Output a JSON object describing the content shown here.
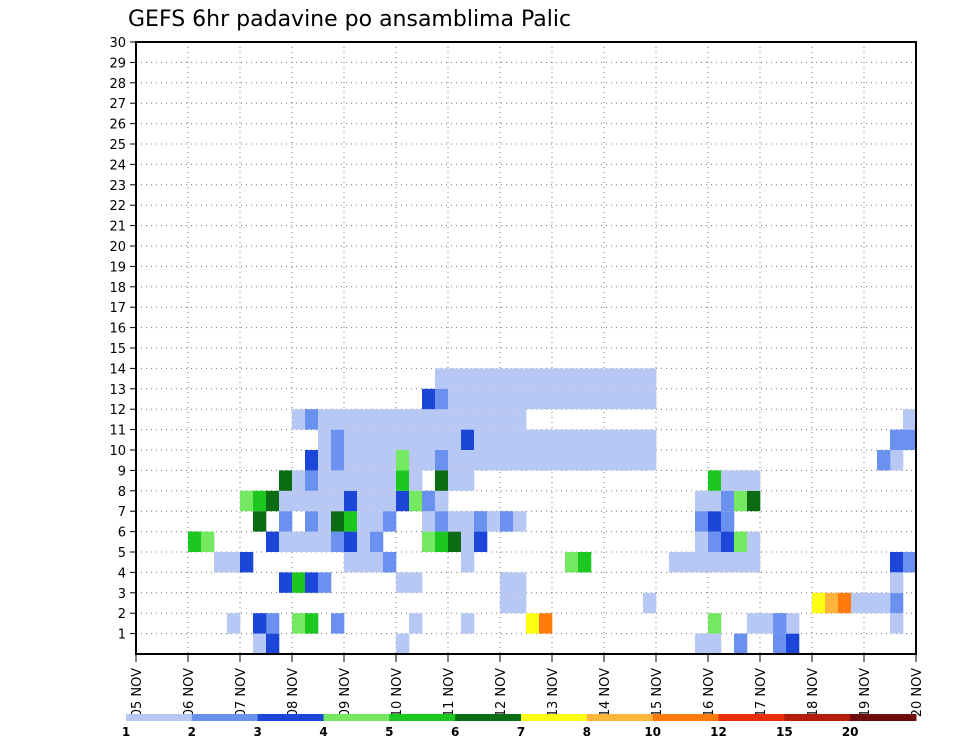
{
  "chart_data": {
    "type": "heatmap",
    "title": "GEFS 6hr padavine po ansamblima Palic",
    "xlabel": "",
    "ylabel": "",
    "x_ticks": [
      "05 NOV",
      "06 NOV",
      "07 NOV",
      "08 NOV",
      "09 NOV",
      "10 NOV",
      "11 NOV",
      "12 NOV",
      "13 NOV",
      "14 NOV",
      "15 NOV",
      "16 NOV",
      "17 NOV",
      "18 NOV",
      "19 NOV",
      "20 NOV"
    ],
    "x_range": [
      0,
      60
    ],
    "y_ticks": [
      "1",
      "2",
      "3",
      "4",
      "5",
      "6",
      "7",
      "8",
      "9",
      "10",
      "11",
      "12",
      "13",
      "14",
      "15",
      "16",
      "17",
      "18",
      "19",
      "20",
      "21",
      "22",
      "23",
      "24",
      "25",
      "26",
      "27",
      "28",
      "29",
      "30"
    ],
    "y_range": [
      0,
      30
    ],
    "grid": true,
    "levels": [
      "1",
      "2",
      "3",
      "4",
      "5",
      "6",
      "7",
      "8",
      "10",
      "12",
      "15",
      "20"
    ],
    "level_colors": [
      "#b8c8f4",
      "#6a90f0",
      "#1c46d8",
      "#74e860",
      "#1cc820",
      "#0c6c14",
      "#ffff14",
      "#ffb43c",
      "#ff7c0c",
      "#e82c0c",
      "#b41c0c",
      "#6c0c0c"
    ],
    "cells": [
      [
        10,
        1,
        1
      ],
      [
        11,
        1,
        3
      ],
      [
        11,
        2,
        2
      ],
      [
        21,
        1,
        1
      ],
      [
        45,
        2,
        4
      ],
      [
        47,
        1,
        2
      ],
      [
        44,
        1,
        1
      ],
      [
        45,
        1,
        1
      ],
      [
        50,
        1,
        2
      ],
      [
        50,
        2,
        1
      ],
      [
        51,
        1,
        3
      ],
      [
        51,
        2,
        1
      ],
      [
        59,
        2,
        1
      ],
      [
        59,
        5,
        3
      ],
      [
        60,
        5,
        2
      ],
      [
        59,
        10,
        1
      ],
      [
        58,
        10,
        2
      ],
      [
        59,
        11,
        2
      ],
      [
        60,
        11,
        2
      ],
      [
        60,
        12,
        1
      ],
      [
        59,
        3,
        2
      ],
      [
        59,
        4,
        1
      ],
      [
        8,
        2,
        1
      ],
      [
        10,
        2,
        3
      ],
      [
        13,
        2,
        4
      ],
      [
        14,
        2,
        5
      ],
      [
        16,
        2,
        2
      ],
      [
        22,
        2,
        1
      ],
      [
        26,
        2,
        1
      ],
      [
        29,
        3,
        1
      ],
      [
        30,
        3,
        1
      ],
      [
        31,
        2,
        7
      ],
      [
        32,
        2,
        9
      ],
      [
        40,
        3,
        1
      ],
      [
        48,
        2,
        1
      ],
      [
        49,
        2,
        1
      ],
      [
        50,
        2,
        2
      ],
      [
        53,
        3,
        7
      ],
      [
        54,
        3,
        8
      ],
      [
        55,
        3,
        9
      ],
      [
        56,
        3,
        1
      ],
      [
        57,
        3,
        1
      ],
      [
        58,
        3,
        1
      ],
      [
        7,
        5,
        1
      ],
      [
        8,
        5,
        1
      ],
      [
        9,
        5,
        3
      ],
      [
        12,
        4,
        3
      ],
      [
        13,
        4,
        5
      ],
      [
        14,
        4,
        3
      ],
      [
        15,
        4,
        2
      ],
      [
        17,
        5,
        1
      ],
      [
        18,
        5,
        1
      ],
      [
        19,
        5,
        1
      ],
      [
        20,
        5,
        2
      ],
      [
        21,
        4,
        1
      ],
      [
        22,
        4,
        1
      ],
      [
        26,
        5,
        1
      ],
      [
        29,
        4,
        1
      ],
      [
        30,
        4,
        1
      ],
      [
        34,
        5,
        4
      ],
      [
        35,
        5,
        5
      ],
      [
        42,
        5,
        1
      ],
      [
        43,
        5,
        1
      ],
      [
        44,
        5,
        1
      ],
      [
        45,
        5,
        1
      ],
      [
        46,
        5,
        1
      ],
      [
        47,
        5,
        1
      ],
      [
        48,
        5,
        1
      ],
      [
        5,
        6,
        5
      ],
      [
        6,
        6,
        4
      ],
      [
        11,
        6,
        3
      ],
      [
        12,
        6,
        1
      ],
      [
        13,
        6,
        1
      ],
      [
        14,
        6,
        1
      ],
      [
        15,
        6,
        1
      ],
      [
        16,
        6,
        2
      ],
      [
        17,
        6,
        3
      ],
      [
        18,
        6,
        1
      ],
      [
        19,
        6,
        2
      ],
      [
        23,
        6,
        4
      ],
      [
        24,
        6,
        5
      ],
      [
        25,
        6,
        6
      ],
      [
        26,
        6,
        1
      ],
      [
        27,
        6,
        3
      ],
      [
        44,
        6,
        1
      ],
      [
        45,
        6,
        2
      ],
      [
        46,
        6,
        3
      ],
      [
        47,
        6,
        4
      ],
      [
        48,
        6,
        1
      ],
      [
        10,
        7,
        6
      ],
      [
        12,
        7,
        2
      ],
      [
        14,
        7,
        2
      ],
      [
        15,
        7,
        1
      ],
      [
        16,
        7,
        6
      ],
      [
        17,
        7,
        5
      ],
      [
        18,
        7,
        1
      ],
      [
        19,
        7,
        1
      ],
      [
        20,
        7,
        2
      ],
      [
        23,
        7,
        1
      ],
      [
        24,
        7,
        2
      ],
      [
        25,
        7,
        1
      ],
      [
        26,
        7,
        1
      ],
      [
        27,
        7,
        2
      ],
      [
        28,
        7,
        1
      ],
      [
        29,
        7,
        2
      ],
      [
        30,
        7,
        1
      ],
      [
        44,
        7,
        2
      ],
      [
        45,
        7,
        3
      ],
      [
        46,
        7,
        2
      ],
      [
        9,
        8,
        4
      ],
      [
        10,
        8,
        5
      ],
      [
        11,
        8,
        6
      ],
      [
        12,
        8,
        1
      ],
      [
        13,
        8,
        1
      ],
      [
        14,
        8,
        1
      ],
      [
        15,
        8,
        1
      ],
      [
        16,
        8,
        1
      ],
      [
        17,
        8,
        3
      ],
      [
        18,
        8,
        1
      ],
      [
        19,
        8,
        1
      ],
      [
        20,
        8,
        1
      ],
      [
        21,
        8,
        3
      ],
      [
        22,
        8,
        4
      ],
      [
        23,
        8,
        2
      ],
      [
        24,
        8,
        1
      ],
      [
        44,
        8,
        1
      ],
      [
        45,
        8,
        1
      ],
      [
        46,
        8,
        2
      ],
      [
        47,
        8,
        4
      ],
      [
        48,
        8,
        6
      ],
      [
        12,
        9,
        6
      ],
      [
        13,
        9,
        1
      ],
      [
        14,
        9,
        2
      ],
      [
        15,
        9,
        1
      ],
      [
        16,
        9,
        1
      ],
      [
        17,
        9,
        1
      ],
      [
        18,
        9,
        1
      ],
      [
        19,
        9,
        1
      ],
      [
        20,
        9,
        1
      ],
      [
        21,
        9,
        5
      ],
      [
        22,
        9,
        1
      ],
      [
        24,
        9,
        6
      ],
      [
        25,
        9,
        1
      ],
      [
        26,
        9,
        1
      ],
      [
        45,
        9,
        5
      ],
      [
        46,
        9,
        1
      ],
      [
        47,
        9,
        1
      ],
      [
        48,
        9,
        1
      ],
      [
        14,
        10,
        3
      ],
      [
        15,
        10,
        1
      ],
      [
        16,
        10,
        2
      ],
      [
        17,
        10,
        1
      ],
      [
        18,
        10,
        1
      ],
      [
        19,
        10,
        1
      ],
      [
        20,
        10,
        1
      ],
      [
        21,
        10,
        4
      ],
      [
        22,
        10,
        1
      ],
      [
        23,
        10,
        1
      ],
      [
        24,
        10,
        2
      ],
      [
        25,
        10,
        1
      ],
      [
        26,
        10,
        1
      ],
      [
        27,
        10,
        1
      ],
      [
        28,
        10,
        1
      ],
      [
        29,
        10,
        1
      ],
      [
        30,
        10,
        1
      ],
      [
        31,
        10,
        1
      ],
      [
        32,
        10,
        1
      ],
      [
        33,
        10,
        1
      ],
      [
        34,
        10,
        1
      ],
      [
        35,
        10,
        1
      ],
      [
        36,
        10,
        1
      ],
      [
        37,
        10,
        1
      ],
      [
        38,
        10,
        1
      ],
      [
        39,
        10,
        1
      ],
      [
        40,
        10,
        1
      ],
      [
        15,
        11,
        1
      ],
      [
        16,
        11,
        2
      ],
      [
        17,
        11,
        1
      ],
      [
        18,
        11,
        1
      ],
      [
        19,
        11,
        1
      ],
      [
        20,
        11,
        1
      ],
      [
        21,
        11,
        1
      ],
      [
        22,
        11,
        1
      ],
      [
        23,
        11,
        1
      ],
      [
        24,
        11,
        1
      ],
      [
        25,
        11,
        1
      ],
      [
        26,
        11,
        3
      ],
      [
        27,
        11,
        1
      ],
      [
        28,
        11,
        1
      ],
      [
        29,
        11,
        1
      ],
      [
        30,
        11,
        1
      ],
      [
        31,
        11,
        1
      ],
      [
        32,
        11,
        1
      ],
      [
        33,
        11,
        1
      ],
      [
        34,
        11,
        1
      ],
      [
        35,
        11,
        1
      ],
      [
        36,
        11,
        1
      ],
      [
        37,
        11,
        1
      ],
      [
        38,
        11,
        1
      ],
      [
        39,
        11,
        1
      ],
      [
        40,
        11,
        1
      ],
      [
        13,
        12,
        1
      ],
      [
        14,
        12,
        2
      ],
      [
        15,
        12,
        1
      ],
      [
        16,
        12,
        1
      ],
      [
        17,
        12,
        1
      ],
      [
        18,
        12,
        1
      ],
      [
        19,
        12,
        1
      ],
      [
        20,
        12,
        1
      ],
      [
        21,
        12,
        1
      ],
      [
        22,
        12,
        1
      ],
      [
        23,
        12,
        1
      ],
      [
        24,
        12,
        1
      ],
      [
        25,
        12,
        1
      ],
      [
        26,
        12,
        1
      ],
      [
        27,
        12,
        1
      ],
      [
        28,
        12,
        1
      ],
      [
        29,
        12,
        1
      ],
      [
        30,
        12,
        1
      ],
      [
        23,
        13,
        3
      ],
      [
        24,
        13,
        2
      ],
      [
        25,
        13,
        1
      ],
      [
        26,
        13,
        1
      ],
      [
        27,
        13,
        1
      ],
      [
        28,
        13,
        1
      ],
      [
        29,
        13,
        1
      ],
      [
        30,
        13,
        1
      ],
      [
        31,
        13,
        1
      ],
      [
        32,
        13,
        1
      ],
      [
        33,
        13,
        1
      ],
      [
        34,
        13,
        1
      ],
      [
        35,
        13,
        1
      ],
      [
        36,
        13,
        1
      ],
      [
        37,
        13,
        1
      ],
      [
        38,
        13,
        1
      ],
      [
        39,
        13,
        1
      ],
      [
        40,
        13,
        1
      ],
      [
        24,
        14,
        1
      ],
      [
        25,
        14,
        1
      ],
      [
        26,
        14,
        1
      ],
      [
        27,
        14,
        1
      ],
      [
        28,
        14,
        1
      ],
      [
        29,
        14,
        1
      ],
      [
        30,
        14,
        1
      ],
      [
        31,
        14,
        1
      ],
      [
        32,
        14,
        1
      ],
      [
        33,
        14,
        1
      ],
      [
        34,
        14,
        1
      ],
      [
        35,
        14,
        1
      ],
      [
        36,
        14,
        1
      ],
      [
        37,
        14,
        1
      ],
      [
        38,
        14,
        1
      ],
      [
        39,
        14,
        1
      ],
      [
        40,
        14,
        1
      ]
    ]
  },
  "legend": {
    "labels": [
      "1",
      "2",
      "3",
      "4",
      "5",
      "6",
      "7",
      "8",
      "10",
      "12",
      "15",
      "20"
    ]
  }
}
